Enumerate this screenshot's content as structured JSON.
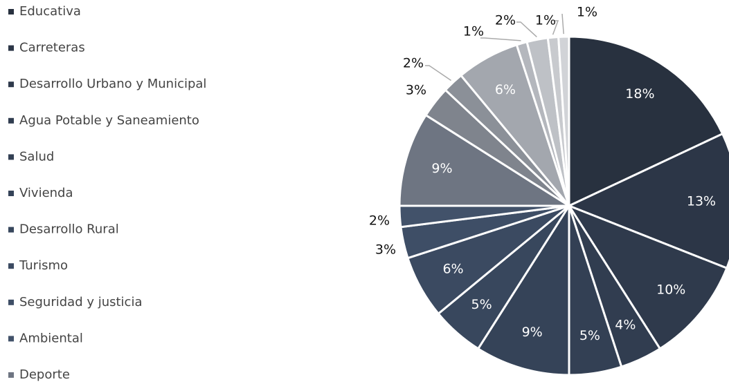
{
  "chart_data": {
    "type": "pie",
    "categories": [
      "Educativa",
      "Carreteras",
      "Desarrollo Urbano y Municipal",
      "Agua Potable y Saneamiento",
      "Salud",
      "Vivienda",
      "Desarrollo Rural",
      "Turismo",
      "Seguridad y justicia",
      "Ambiental",
      "Deporte",
      null,
      null,
      null,
      null,
      null,
      null,
      null
    ],
    "values": [
      18,
      13,
      10,
      4,
      5,
      9,
      5,
      6,
      3,
      2,
      9,
      3,
      2,
      6,
      1,
      2,
      1,
      1
    ],
    "value_labels": [
      "18%",
      "13%",
      "10%",
      "4%",
      "5%",
      "9%",
      "5%",
      "6%",
      "3%",
      "2%",
      "9%",
      "3%",
      "2%",
      "6%",
      "1%",
      "2%",
      "1%",
      "1%"
    ],
    "colors": [
      "#28313f",
      "#2c3647",
      "#2f3a4c",
      "#313d50",
      "#334054",
      "#354358",
      "#38475d",
      "#3b4a61",
      "#3e4e66",
      "#42526a",
      "#6e7582",
      "#7f848d",
      "#8b9098",
      "#a3a7ae",
      "#b4b7bd",
      "#bec1c6",
      "#c8cace",
      "#d1d3d7"
    ],
    "legend": "left"
  }
}
